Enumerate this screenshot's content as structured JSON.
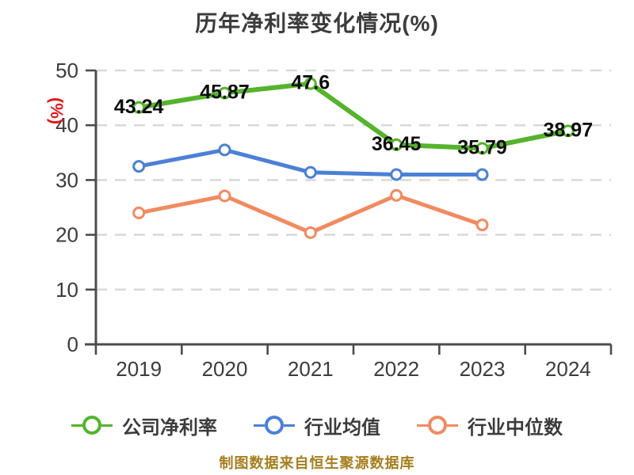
{
  "chart": {
    "title": "历年净利率变化情况(%)",
    "y_unit_label": "(%)",
    "y_unit_color": "#e01a1a",
    "caption": "制图数据来自恒生聚源数据库",
    "caption_color": "#a57e1d",
    "title_color": "#3c3c3c",
    "axis_color": "#4c4c4c",
    "grid_color": "#dadada",
    "tick_label_color": "#3c3c3c",
    "value_label_color": "#0d0d0d",
    "background": "#ffffff"
  },
  "chart_data": {
    "type": "line",
    "title": "历年净利率变化情况(%)",
    "categories": [
      "2019",
      "2020",
      "2021",
      "2022",
      "2023",
      "2024"
    ],
    "series": [
      {
        "name": "公司净利率",
        "color": "#55b42c",
        "values": [
          43.24,
          45.87,
          47.6,
          36.45,
          35.79,
          38.97
        ],
        "point_labels": [
          "43.24",
          "45.87",
          "47.6",
          "36.45",
          "35.79",
          "38.97"
        ],
        "labeled": true
      },
      {
        "name": "行业均值",
        "color": "#4b80d6",
        "values": [
          32.5,
          35.5,
          31.4,
          31.0,
          31.0,
          null
        ],
        "labeled": false
      },
      {
        "name": "行业中位数",
        "color": "#f28a60",
        "values": [
          24.0,
          27.1,
          20.4,
          27.2,
          21.8,
          null
        ],
        "labeled": false
      }
    ],
    "ylim": [
      0,
      50
    ],
    "yticks": [
      0,
      10,
      20,
      30,
      40,
      50
    ],
    "ylabel": "(%)",
    "xlabel": "",
    "grid": "horizontal-dashed",
    "legend_position": "bottom",
    "marker": "white-filled-circle"
  }
}
